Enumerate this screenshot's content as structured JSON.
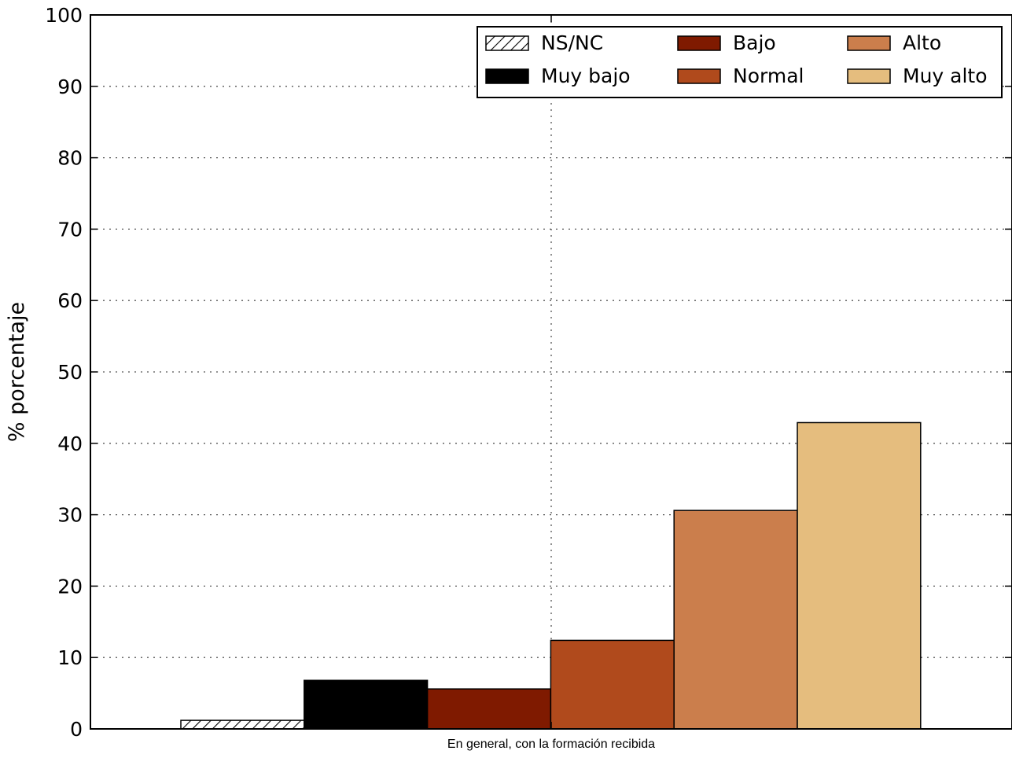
{
  "chart_data": {
    "type": "bar",
    "ylabel": "% porcentaje",
    "xlabel": "",
    "categories": [
      "En general, con la formación recibida"
    ],
    "ylim": [
      0,
      100
    ],
    "yticks": [
      0,
      10,
      20,
      30,
      40,
      50,
      60,
      70,
      80,
      90,
      100
    ],
    "grid": true,
    "legend": "top-right",
    "series": [
      {
        "name": "NS/NC",
        "values": [
          1.2
        ],
        "color": "#ffffff",
        "pattern": "hatched"
      },
      {
        "name": "Muy bajo",
        "values": [
          6.8
        ],
        "color": "#000000"
      },
      {
        "name": "Bajo",
        "values": [
          5.6
        ],
        "color": "#7f1a00"
      },
      {
        "name": "Normal",
        "values": [
          12.4
        ],
        "color": "#b04a1c"
      },
      {
        "name": "Alto",
        "values": [
          30.6
        ],
        "color": "#cb7e4c"
      },
      {
        "name": "Muy alto",
        "values": [
          42.9
        ],
        "color": "#e5bd7e"
      }
    ]
  }
}
